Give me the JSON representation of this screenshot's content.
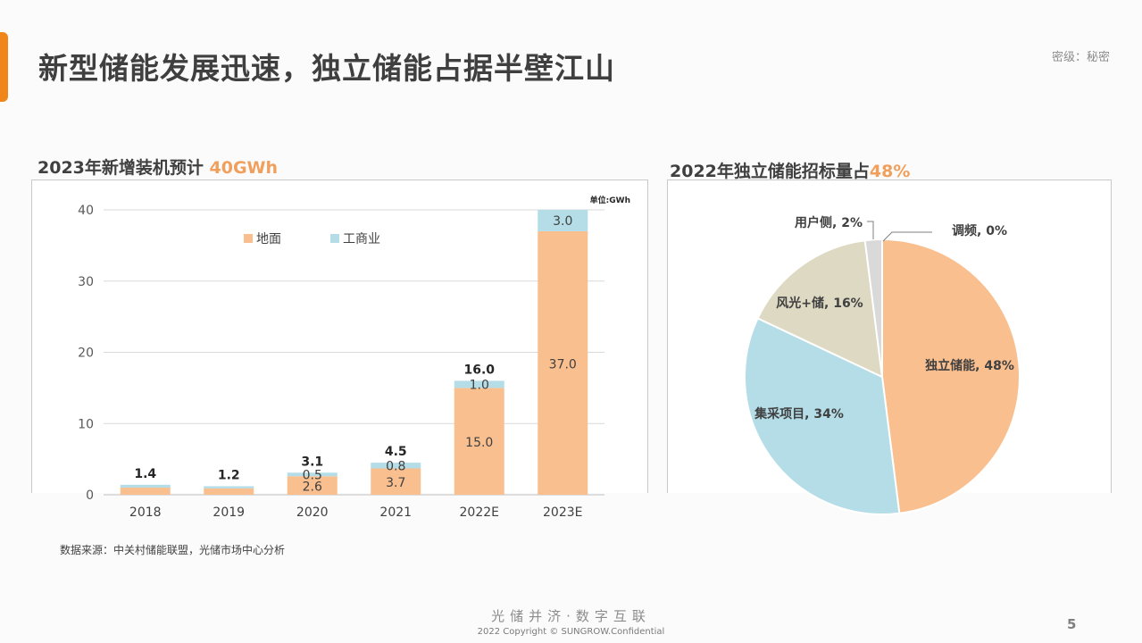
{
  "slide": {
    "title": "新型储能发展迅速，独立储能占据半壁江山",
    "confidential_label": "密级：秘密",
    "source_note": "数据来源：中关村储能联盟，光储市场中心分析",
    "slogan": "光储并济·数字互联",
    "copyright": "2022 Copyright © SUNGROW.Confidential",
    "page_number": "5"
  },
  "left_panel": {
    "subtitle_prefix": "2023年新增装机预计 ",
    "subtitle_highlight": "40GWh"
  },
  "right_panel": {
    "subtitle_prefix": "2022年独立储能招标量占",
    "subtitle_highlight": "48%"
  },
  "colors": {
    "accent": "#f08519",
    "highlight": "#f0a05c",
    "ground": "#f9bf8f",
    "commercial": "#b4dde7",
    "wind_solar": "#ddd9c3",
    "user_side": "#d9d9d9",
    "grid": "#d9d9d9"
  },
  "chart_data": [
    {
      "type": "bar",
      "stacked": true,
      "unit_label": "单位:GWh",
      "categories": [
        "2018",
        "2019",
        "2020",
        "2021",
        "2022E",
        "2023E"
      ],
      "series": [
        {
          "name": "地面",
          "values": [
            1.0,
            0.9,
            2.6,
            3.7,
            15.0,
            37.0
          ],
          "labels": [
            "",
            "",
            "2.6",
            "3.7",
            "15.0",
            "37.0"
          ]
        },
        {
          "name": "工商业",
          "values": [
            0.4,
            0.3,
            0.5,
            0.8,
            1.0,
            3.0
          ],
          "labels": [
            "",
            "",
            "0.5",
            "0.8",
            "1.0",
            "3.0"
          ]
        }
      ],
      "totals": [
        1.4,
        1.2,
        3.1,
        4.5,
        16.0,
        40.0
      ],
      "total_labels": [
        "1.4",
        "1.2",
        "3.1",
        "4.5",
        "16.0",
        ""
      ],
      "ylim": [
        0,
        40
      ],
      "yticks": [
        "0",
        "10",
        "20",
        "30",
        "40"
      ],
      "grid": true,
      "legend_position": "top"
    },
    {
      "type": "pie",
      "slices": [
        {
          "name": "独立储能",
          "value": 48,
          "label": "独立储能, 48%"
        },
        {
          "name": "集采项目",
          "value": 34,
          "label": "集采项目, 34%"
        },
        {
          "name": "风光+储",
          "value": 16,
          "label": "风光+储, 16%"
        },
        {
          "name": "用户侧",
          "value": 2,
          "label": "用户侧, 2%"
        },
        {
          "name": "调频",
          "value": 0,
          "label": "调频, 0%"
        }
      ]
    }
  ]
}
